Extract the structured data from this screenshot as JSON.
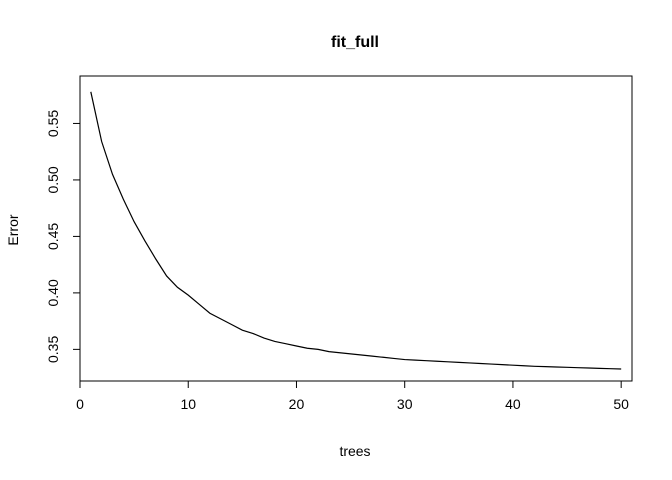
{
  "chart_data": {
    "type": "line",
    "title": "fit_full",
    "xlabel": "trees",
    "ylabel": "Error",
    "xlim": [
      0,
      51
    ],
    "ylim": [
      0.322,
      0.592
    ],
    "x_ticks": [
      0,
      10,
      20,
      30,
      40,
      50
    ],
    "y_ticks": [
      0.35,
      0.4,
      0.45,
      0.5,
      0.55
    ],
    "x_tick_labels": [
      "0",
      "10",
      "20",
      "30",
      "40",
      "50"
    ],
    "y_tick_labels": [
      "0.35",
      "0.40",
      "0.45",
      "0.50",
      "0.55"
    ],
    "grid": false,
    "legend": "none",
    "series": [
      {
        "color": "#000000",
        "x": [
          1,
          2,
          3,
          4,
          5,
          6,
          7,
          8,
          9,
          10,
          11,
          12,
          13,
          14,
          15,
          16,
          17,
          18,
          19,
          20,
          21,
          22,
          23,
          24,
          25,
          26,
          27,
          28,
          29,
          30,
          31,
          32,
          33,
          34,
          35,
          36,
          37,
          38,
          39,
          40,
          41,
          42,
          43,
          44,
          45,
          46,
          47,
          48,
          49,
          50
        ],
        "y": [
          0.578,
          0.534,
          0.505,
          0.483,
          0.463,
          0.446,
          0.43,
          0.415,
          0.405,
          0.398,
          0.39,
          0.382,
          0.377,
          0.372,
          0.367,
          0.364,
          0.36,
          0.357,
          0.355,
          0.353,
          0.351,
          0.35,
          0.348,
          0.347,
          0.346,
          0.345,
          0.344,
          0.343,
          0.342,
          0.341,
          0.3405,
          0.34,
          0.3395,
          0.339,
          0.3385,
          0.338,
          0.3375,
          0.337,
          0.3365,
          0.336,
          0.3355,
          0.335,
          0.3347,
          0.3344,
          0.3341,
          0.3338,
          0.3335,
          0.3332,
          0.3329,
          0.3326
        ]
      }
    ]
  }
}
